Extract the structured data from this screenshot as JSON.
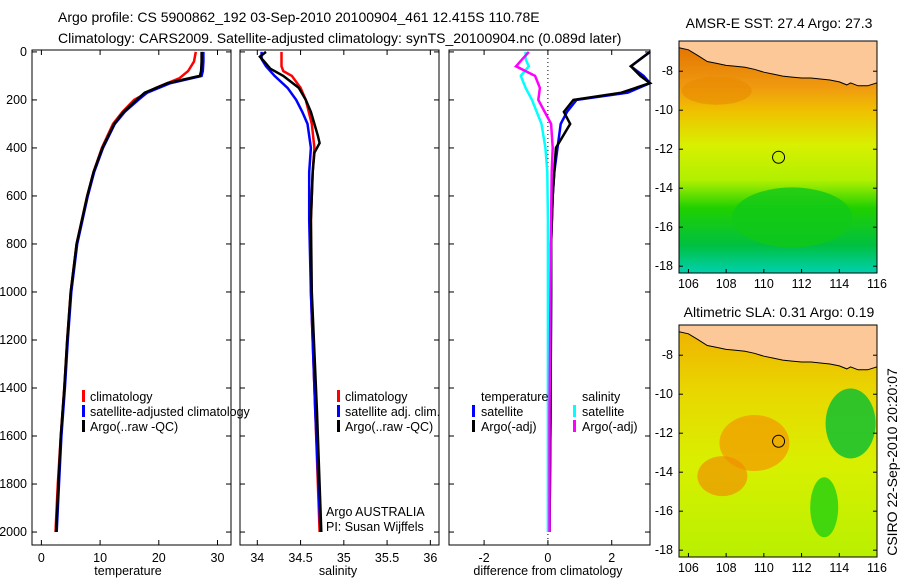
{
  "title_line1": "Argo profile: CS 5900862_192 03-Sep-2010 20100904_461 12.415S 110.78E",
  "title_line2": "Climatology: CARS2009. Satellite-adjusted climatology: synTS_20100904.nc (0.089d later)",
  "footer_vertical": "CSIRO 22-Sep-2010 20:20:07",
  "chart_data": [
    {
      "type": "line",
      "xlabel": "temperature",
      "ylabel": "",
      "xlim": [
        -1.6,
        32.3
      ],
      "ylim": [
        2054,
        -8
      ],
      "xticks": [
        0,
        10,
        20,
        30
      ],
      "yticks": [
        0,
        200,
        400,
        600,
        800,
        1000,
        1200,
        1400,
        1600,
        1800,
        2000
      ],
      "legend": [
        "climatology",
        "satellite-adjusted climatology",
        "Argo(..raw -QC)"
      ],
      "legend_position": "lower-middle",
      "series": [
        {
          "name": "climatology",
          "color": "#ff0000",
          "depth": [
            0,
            40,
            80,
            110,
            150,
            200,
            250,
            300,
            400,
            500,
            600,
            800,
            1000,
            1200,
            1400,
            1600,
            1800,
            2000
          ],
          "values": [
            26.3,
            26.0,
            25.0,
            23.5,
            19.5,
            15.8,
            13.8,
            12.2,
            10.3,
            8.9,
            7.8,
            6.0,
            5.0,
            4.4,
            3.9,
            3.3,
            2.8,
            2.4
          ]
        },
        {
          "name": "satellite-adjusted climatology",
          "color": "#0000ff",
          "depth": [
            0,
            40,
            80,
            100,
            130,
            170,
            200,
            250,
            300,
            400,
            500,
            600,
            800,
            1000,
            1200,
            1400,
            1600,
            1800,
            2000
          ],
          "values": [
            27.6,
            27.6,
            27.5,
            27.3,
            22.0,
            18.0,
            16.5,
            14.2,
            12.5,
            10.5,
            9.0,
            7.9,
            6.1,
            5.1,
            4.5,
            4.0,
            3.4,
            3.0,
            2.6
          ]
        },
        {
          "name": "Argo(..raw -QC)",
          "color": "#000000",
          "depth": [
            0,
            40,
            80,
            100,
            130,
            170,
            200,
            250,
            300,
            400,
            500,
            600,
            800,
            1000,
            1200,
            1400,
            1600,
            1800,
            2000
          ],
          "values": [
            27.3,
            27.3,
            27.2,
            27.0,
            21.5,
            17.6,
            16.2,
            14.0,
            12.4,
            10.4,
            8.9,
            7.8,
            6.0,
            5.0,
            4.4,
            3.9,
            3.3,
            2.9,
            2.5
          ]
        }
      ],
      "annotations": []
    },
    {
      "type": "line",
      "xlabel": "salinity",
      "xlim": [
        33.8,
        36.1
      ],
      "ylim": [
        2054,
        -8
      ],
      "xticks": [
        34,
        34.5,
        35,
        35.5,
        36
      ],
      "legend": [
        "climatology",
        "satellite adj. clim.",
        "Argo(..raw -QC)"
      ],
      "legend_position": "lower-right",
      "series": [
        {
          "name": "climatology",
          "color": "#ff0000",
          "depth": [
            0,
            60,
            80,
            100,
            150,
            200,
            300,
            400,
            500,
            700,
            1000,
            1500,
            2000
          ],
          "values": [
            34.28,
            34.28,
            34.3,
            34.4,
            34.5,
            34.56,
            34.63,
            34.66,
            34.64,
            34.62,
            34.62,
            34.67,
            34.72
          ]
        },
        {
          "name": "satellite adj. clim.",
          "color": "#0000ff",
          "depth": [
            0,
            30,
            60,
            100,
            150,
            200,
            250,
            300,
            400,
            500,
            700,
            1000,
            1500,
            2000
          ],
          "values": [
            34.05,
            34.05,
            34.1,
            34.2,
            34.35,
            34.45,
            34.52,
            34.58,
            34.62,
            34.6,
            34.6,
            34.62,
            34.67,
            34.73
          ]
        },
        {
          "name": "Argo(..raw -QC)",
          "color": "#000000",
          "depth": [
            0,
            20,
            40,
            70,
            100,
            150,
            200,
            250,
            300,
            350,
            380,
            420,
            500,
            700,
            1000,
            1500,
            2000
          ],
          "values": [
            34.1,
            34.03,
            34.08,
            34.15,
            34.3,
            34.48,
            34.56,
            34.62,
            34.66,
            34.7,
            34.72,
            34.66,
            34.64,
            34.62,
            34.63,
            34.69,
            34.74
          ]
        }
      ],
      "annotations": [
        "Argo AUSTRALIA",
        "PI: Susan Wijffels"
      ]
    },
    {
      "type": "line",
      "xlabel": "difference from climatology",
      "xlim": [
        -3.1,
        3.2
      ],
      "ylim": [
        2054,
        -8
      ],
      "xticks": [
        -2,
        0,
        2
      ],
      "legend_groups": [
        {
          "heading": "temperature",
          "items": [
            "satellite",
            "Argo(-adj)"
          ]
        },
        {
          "heading": "salinity",
          "items": [
            "satellite",
            "Argo(-adj)"
          ]
        }
      ],
      "legend_position": "lower-middle",
      "series": [
        {
          "name": "temperature satellite",
          "color": "#0000ff",
          "depth": [
            0,
            40,
            60,
            100,
            130,
            170,
            200,
            250,
            300,
            400,
            500,
            600,
            800,
            1000,
            1500,
            2000
          ],
          "values": [
            3.2,
            2.8,
            2.6,
            3.0,
            3.2,
            2.5,
            0.9,
            0.6,
            0.4,
            0.3,
            0.2,
            0.15,
            0.1,
            0.1,
            0.08,
            0.05
          ]
        },
        {
          "name": "temperature Argo(-adj)",
          "color": "#000000",
          "depth": [
            0,
            40,
            60,
            100,
            130,
            170,
            200,
            250,
            300,
            400,
            500,
            600,
            800,
            1000,
            1500,
            2000
          ],
          "values": [
            3.2,
            2.8,
            2.6,
            2.9,
            3.2,
            2.3,
            0.8,
            0.5,
            0.7,
            0.25,
            0.2,
            0.15,
            0.1,
            0.1,
            0.08,
            0.05
          ]
        },
        {
          "name": "salinity satellite",
          "color": "#00ffff",
          "depth": [
            0,
            30,
            60,
            100,
            150,
            200,
            300,
            400,
            500,
            700,
            1000,
            1500,
            2000
          ],
          "values": [
            -0.7,
            -0.7,
            -0.6,
            -0.85,
            -0.7,
            -0.5,
            -0.2,
            -0.08,
            -0.02,
            0,
            0,
            0,
            0
          ]
        },
        {
          "name": "salinity Argo(-adj)",
          "color": "#ff00ff",
          "depth": [
            0,
            30,
            60,
            80,
            100,
            150,
            200,
            300,
            400,
            500,
            700,
            1000,
            1500,
            2000
          ],
          "values": [
            -0.6,
            -0.8,
            -1.0,
            -0.7,
            -0.4,
            -0.25,
            -0.3,
            0.1,
            0.15,
            0.12,
            0.1,
            0.08,
            0.05,
            0.05
          ]
        }
      ],
      "annotations": []
    },
    {
      "type": "heatmap",
      "title": "AMSR-E SST: 27.4 Argo: 27.3",
      "xlim": [
        105.5,
        116
      ],
      "ylim": [
        -18.35,
        -6.45
      ],
      "xticks": [
        106,
        108,
        110,
        112,
        114,
        116
      ],
      "yticks": [
        -8,
        -10,
        -12,
        -14,
        -16,
        -18
      ],
      "float_position": [
        110.78,
        -12.415
      ]
    },
    {
      "type": "heatmap",
      "title": "Altimetric SLA: 0.31 Argo: 0.19",
      "xlim": [
        105.5,
        116
      ],
      "ylim": [
        -18.35,
        -6.45
      ],
      "xticks": [
        106,
        108,
        110,
        112,
        114,
        116
      ],
      "yticks": [
        -8,
        -10,
        -12,
        -14,
        -16,
        -18
      ],
      "float_position": [
        110.78,
        -12.415
      ]
    }
  ],
  "coastline": {
    "lon": [
      105.5,
      106,
      106.5,
      107,
      107.5,
      108,
      108.5,
      109,
      109.5,
      110,
      110.5,
      111,
      111.5,
      112,
      112.5,
      113,
      113.5,
      114,
      114.4,
      114.6,
      115,
      115.5,
      116,
      116,
      105.5
    ],
    "lat": [
      -6.8,
      -6.9,
      -7.2,
      -7.5,
      -7.6,
      -7.7,
      -7.75,
      -7.8,
      -7.9,
      -8.05,
      -8.15,
      -8.25,
      -8.3,
      -8.35,
      -8.35,
      -8.4,
      -8.45,
      -8.55,
      -8.7,
      -8.6,
      -8.75,
      -8.75,
      -8.6,
      -6.45,
      -6.45
    ]
  }
}
